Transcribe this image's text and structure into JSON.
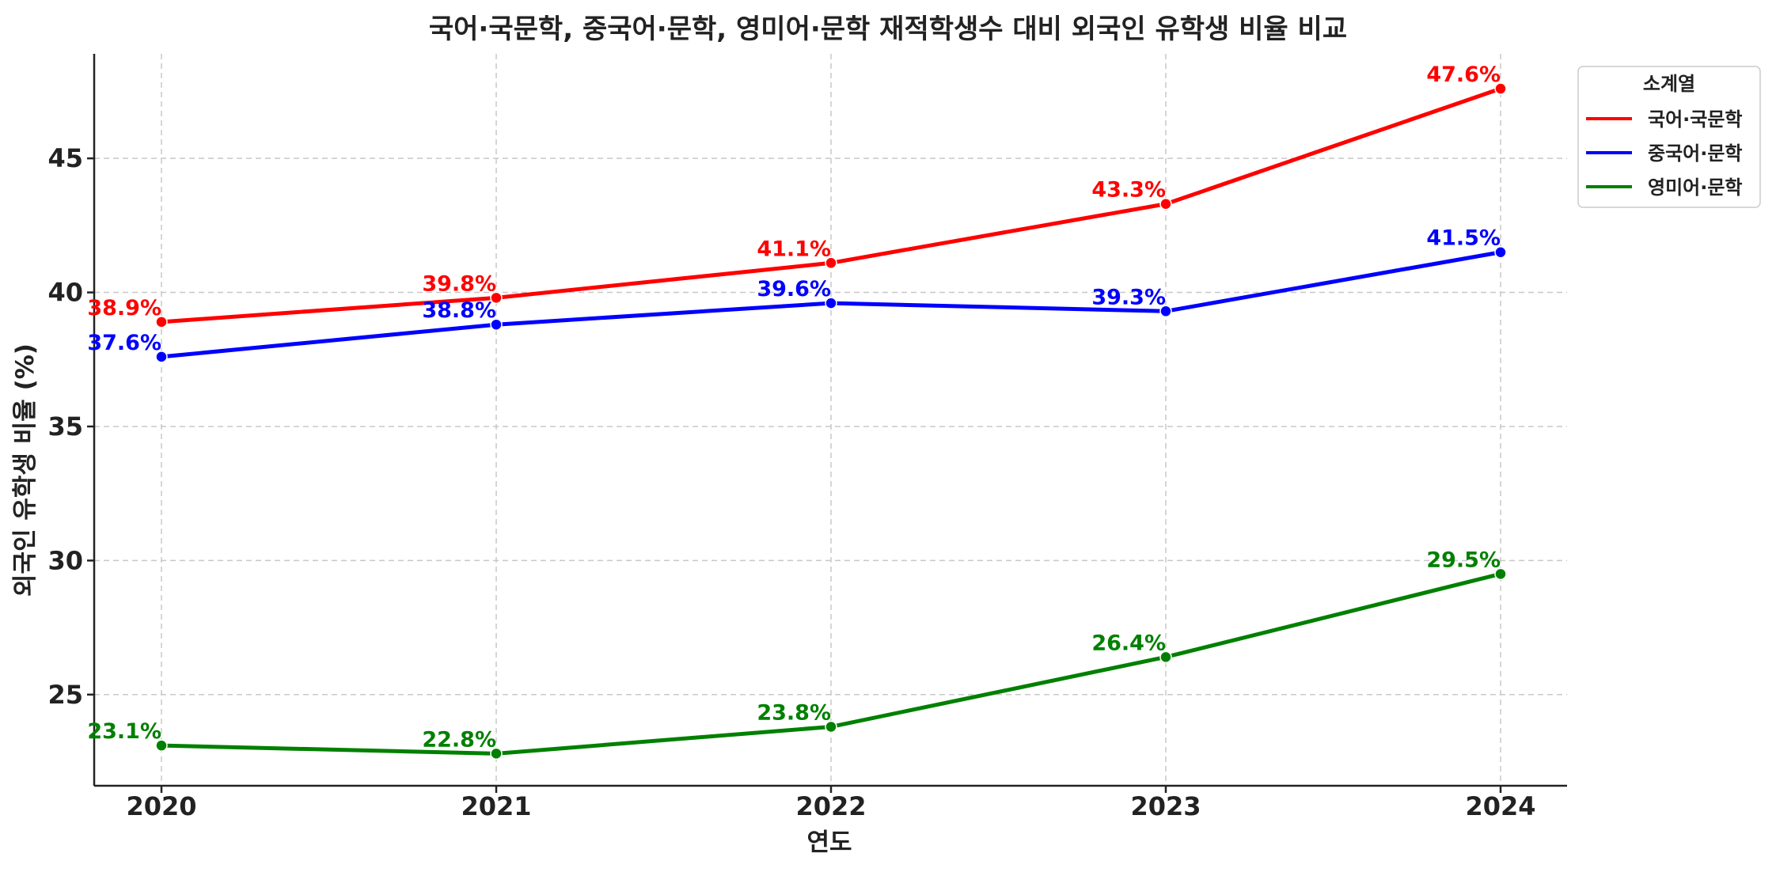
{
  "chart_data": {
    "type": "line",
    "title": "국어·국문학, 중국어·문학, 영미어·문학 재적학생수 대비 외국인 유학생 비율 비교",
    "xlabel": "연도",
    "ylabel": "외국인 유학생 비율 (%)",
    "x": [
      "2020",
      "2021",
      "2022",
      "2023",
      "2024"
    ],
    "ylim": [
      21.6,
      48.9
    ],
    "yticks": [
      25,
      30,
      35,
      40,
      45
    ],
    "grid": true,
    "legend": {
      "title": "소계열",
      "placement": "top-right-outside"
    },
    "series": [
      {
        "name": "국어·국문학",
        "color": "#ff0000",
        "values": [
          38.9,
          39.8,
          41.1,
          43.3,
          47.6
        ],
        "labels": [
          "38.9%",
          "39.8%",
          "41.1%",
          "43.3%",
          "47.6%"
        ]
      },
      {
        "name": "중국어·문학",
        "color": "#0000ff",
        "values": [
          37.6,
          38.8,
          39.6,
          39.3,
          41.5
        ],
        "labels": [
          "37.6%",
          "38.8%",
          "39.6%",
          "39.3%",
          "41.5%"
        ]
      },
      {
        "name": "영미어·문학",
        "color": "#008000",
        "values": [
          23.1,
          22.8,
          23.8,
          26.4,
          29.5
        ],
        "labels": [
          "23.1%",
          "22.8%",
          "23.8%",
          "26.4%",
          "29.5%"
        ]
      }
    ]
  }
}
